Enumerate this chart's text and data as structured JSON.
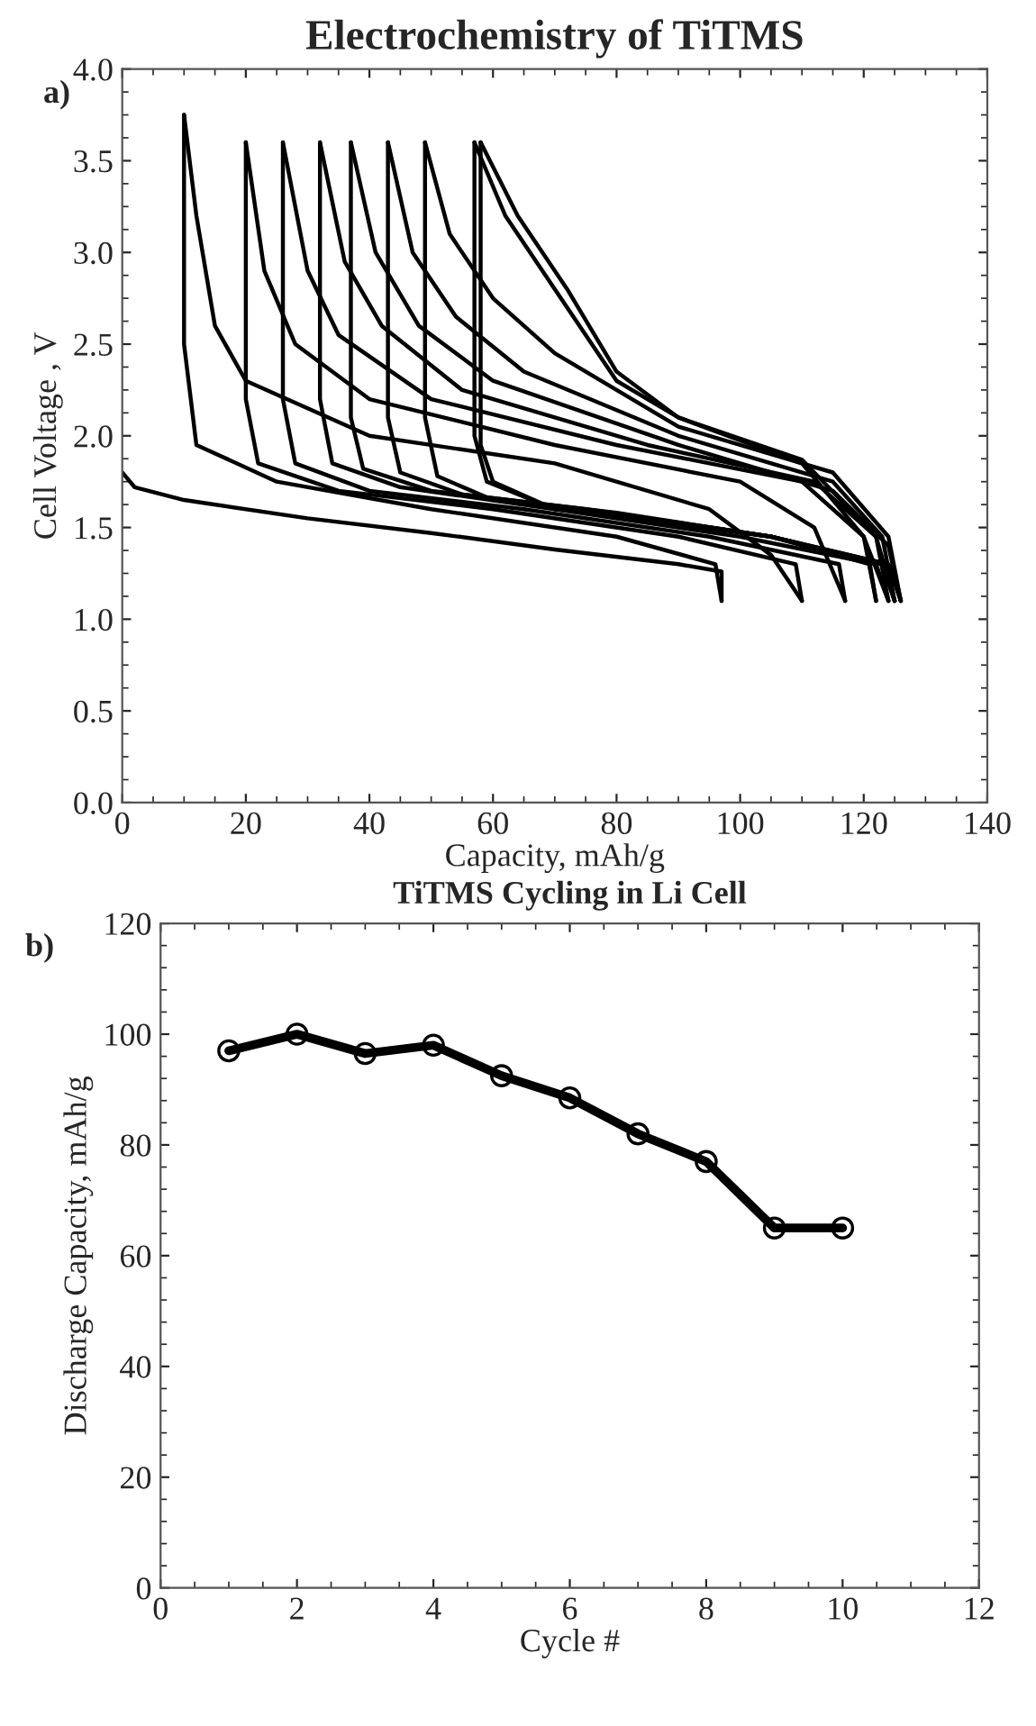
{
  "chart_data": [
    {
      "type": "line",
      "title": "Electrochemistry of TiTMS",
      "xlabel": "Capacity, mAh/g",
      "ylabel": "Cell Voltage , V",
      "annotations": [
        "a)"
      ],
      "xlim": [
        0,
        140
      ],
      "xticks": [
        0,
        20,
        40,
        60,
        80,
        100,
        120,
        140
      ],
      "ylim": [
        0,
        4
      ],
      "yticks": [
        {
          "value": 0,
          "label": "0.0"
        },
        {
          "value": 0.5,
          "label": "0.5"
        },
        {
          "value": 1,
          "label": "1.0"
        },
        {
          "value": 1.5,
          "label": "1.5"
        },
        {
          "value": 2,
          "label": "2.0"
        },
        {
          "value": 2.5,
          "label": "2.5"
        },
        {
          "value": 3,
          "label": "3.0"
        },
        {
          "value": 3.5,
          "label": "3.5"
        },
        {
          "value": 4,
          "label": "4.0"
        }
      ],
      "grid": false,
      "legend": false,
      "marker": "none",
      "line_style": "solid",
      "series": [
        {
          "color": "#000000",
          "x": [
            0,
            2,
            10,
            30,
            50,
            70,
            90,
            97,
            97
          ],
          "values": [
            1.8,
            1.72,
            1.65,
            1.55,
            1.47,
            1.38,
            1.3,
            1.26,
            1.1
          ]
        },
        {
          "color": "#000000",
          "x": [
            97,
            96,
            80,
            50,
            25,
            12,
            10,
            10
          ],
          "values": [
            1.1,
            1.3,
            1.45,
            1.6,
            1.75,
            1.95,
            2.5,
            3.75
          ]
        },
        {
          "color": "#000000",
          "x": [
            10,
            12,
            15,
            20,
            40,
            70,
            95,
            105,
            110
          ],
          "values": [
            3.75,
            3.2,
            2.6,
            2.3,
            2.0,
            1.85,
            1.6,
            1.35,
            1.1
          ]
        },
        {
          "color": "#000000",
          "x": [
            110,
            109,
            90,
            60,
            35,
            22,
            20,
            20
          ],
          "values": [
            1.1,
            1.3,
            1.45,
            1.6,
            1.7,
            1.85,
            2.2,
            3.6
          ]
        },
        {
          "color": "#000000",
          "x": [
            20,
            23,
            28,
            40,
            70,
            100,
            112,
            117
          ],
          "values": [
            3.6,
            2.9,
            2.5,
            2.2,
            1.95,
            1.75,
            1.5,
            1.1
          ]
        },
        {
          "color": "#000000",
          "x": [
            117,
            116,
            95,
            65,
            40,
            28,
            26,
            26
          ],
          "values": [
            1.1,
            1.3,
            1.45,
            1.6,
            1.7,
            1.85,
            2.2,
            3.6
          ]
        },
        {
          "color": "#000000",
          "x": [
            26,
            30,
            35,
            50,
            80,
            110,
            120,
            124
          ],
          "values": [
            3.6,
            2.9,
            2.55,
            2.2,
            1.95,
            1.75,
            1.45,
            1.1
          ]
        },
        {
          "color": "#000000",
          "x": [
            124,
            122,
            100,
            70,
            45,
            34,
            32,
            32
          ],
          "values": [
            1.1,
            1.3,
            1.45,
            1.6,
            1.72,
            1.85,
            2.2,
            3.6
          ]
        },
        {
          "color": "#000000",
          "x": [
            32,
            36,
            42,
            55,
            85,
            112,
            122,
            125
          ],
          "values": [
            3.6,
            2.95,
            2.6,
            2.25,
            1.95,
            1.75,
            1.45,
            1.1
          ]
        },
        {
          "color": "#000000",
          "x": [
            125,
            123,
            105,
            75,
            50,
            39,
            37,
            37
          ],
          "values": [
            1.1,
            1.3,
            1.45,
            1.6,
            1.7,
            1.82,
            2.1,
            3.6
          ]
        },
        {
          "color": "#000000",
          "x": [
            37,
            41,
            48,
            60,
            90,
            115,
            124,
            126
          ],
          "values": [
            3.6,
            3.0,
            2.6,
            2.3,
            1.95,
            1.7,
            1.4,
            1.1
          ]
        },
        {
          "color": "#000000",
          "x": [
            126,
            124,
            105,
            80,
            55,
            45,
            43,
            43
          ],
          "values": [
            1.1,
            1.3,
            1.45,
            1.58,
            1.68,
            1.8,
            2.1,
            3.6
          ]
        },
        {
          "color": "#000000",
          "x": [
            43,
            47,
            54,
            65,
            90,
            115,
            123,
            125
          ],
          "values": [
            3.6,
            3.0,
            2.65,
            2.35,
            2.0,
            1.75,
            1.45,
            1.1
          ]
        },
        {
          "color": "#000000",
          "x": [
            125,
            123,
            105,
            80,
            60,
            51,
            49,
            49
          ],
          "values": [
            1.1,
            1.3,
            1.45,
            1.56,
            1.65,
            1.78,
            2.1,
            3.6
          ]
        },
        {
          "color": "#000000",
          "x": [
            49,
            53,
            60,
            70,
            90,
            115,
            124,
            126
          ],
          "values": [
            3.6,
            3.1,
            2.75,
            2.45,
            2.05,
            1.8,
            1.45,
            1.1
          ]
        },
        {
          "color": "#000000",
          "x": [
            126,
            124,
            105,
            85,
            70,
            59,
            57,
            57
          ],
          "values": [
            1.1,
            1.3,
            1.45,
            1.55,
            1.6,
            1.75,
            2.0,
            3.6
          ]
        },
        {
          "color": "#000000",
          "x": [
            57,
            62,
            70,
            80,
            90,
            110,
            120,
            122
          ],
          "values": [
            3.6,
            3.2,
            2.8,
            2.3,
            2.1,
            1.85,
            1.45,
            1.1
          ]
        },
        {
          "color": "#000000",
          "x": [
            122,
            121,
            105,
            85,
            70,
            60,
            58,
            58
          ],
          "values": [
            1.1,
            1.3,
            1.45,
            1.55,
            1.6,
            1.75,
            1.95,
            3.6
          ]
        },
        {
          "color": "#000000",
          "x": [
            58,
            64,
            72,
            80,
            90,
            110,
            122,
            124
          ],
          "values": [
            3.6,
            3.2,
            2.8,
            2.35,
            2.1,
            1.87,
            1.45,
            1.1
          ]
        }
      ]
    },
    {
      "type": "line",
      "title": "TiTMS Cycling in Li Cell",
      "xlabel": "Cycle #",
      "ylabel": "Discharge Capacity, mAh/g",
      "annotations": [
        "b)"
      ],
      "xlim": [
        0,
        12
      ],
      "xticks": [
        0,
        2,
        4,
        6,
        8,
        10,
        12
      ],
      "ylim": [
        0,
        120
      ],
      "yticks": [
        0,
        20,
        40,
        60,
        80,
        100,
        120
      ],
      "grid": false,
      "legend": false,
      "marker": "circle",
      "line_style": "solid",
      "series": [
        {
          "color": "#000000",
          "x": [
            1,
            2,
            3,
            4,
            5,
            6,
            7,
            8,
            9,
            10
          ],
          "values": [
            97,
            100,
            96.5,
            98,
            92.5,
            88.5,
            82,
            77,
            65,
            65
          ]
        }
      ]
    }
  ]
}
